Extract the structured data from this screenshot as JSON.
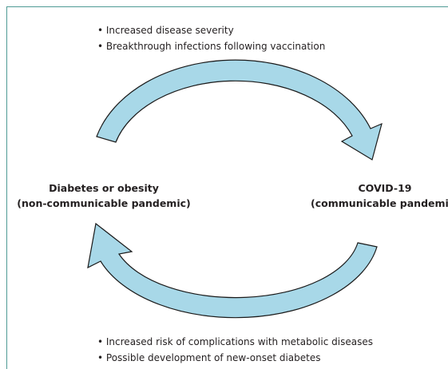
{
  "top_bullets": [
    "• Increased disease severity",
    "• Breakthrough infections following vaccination"
  ],
  "left_node": {
    "line1": "Diabetes or obesity",
    "line2": "(non-communicable pandemic)"
  },
  "right_node": {
    "line1": "COVID-19",
    "line2": "(communicable pandemic)"
  },
  "bottom_bullets": [
    "• Increased risk of complications with metabolic diseases",
    "• Possible development of new-onset diabetes"
  ]
}
